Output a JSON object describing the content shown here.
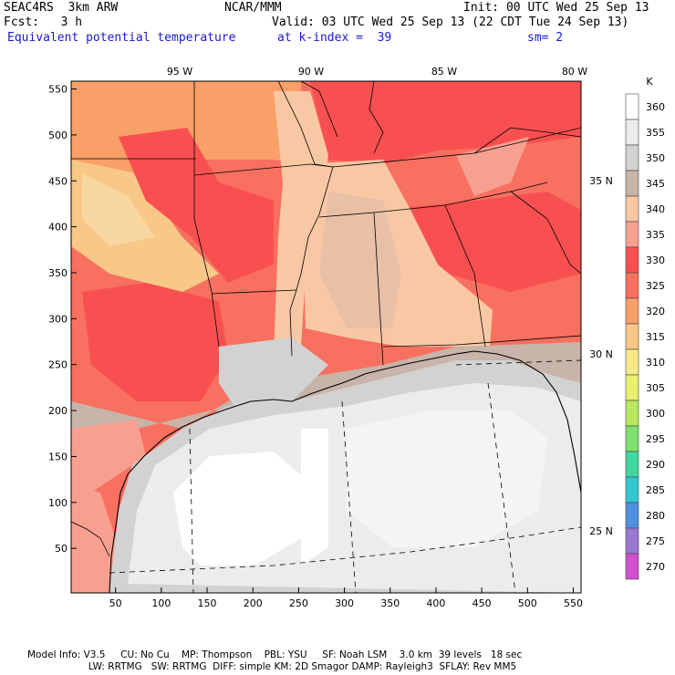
{
  "header": {
    "line1_left": "SEAC4RS  3km ARW",
    "line1_mid": "NCAR/MMM",
    "line1_right": "Init: 00 UTC Wed 25 Sep 13",
    "line2_left": "Fcst:   3 h",
    "line2_right": "Valid: 03 UTC Wed 25 Sep 13 (22 CDT Tue 24 Sep 13)",
    "line3_left": "Equivalent potential temperature",
    "line3_mid": "at k-index =  39",
    "line3_right": "sm= 2"
  },
  "map": {
    "top_lon_labels": [
      "95 W",
      "90 W",
      "85 W",
      "80 W"
    ],
    "right_lat_labels": [
      "35 N",
      "30 N",
      "25 N"
    ],
    "y_tick_labels": [
      "550",
      "500",
      "450",
      "400",
      "350",
      "300",
      "250",
      "200",
      "150",
      "100",
      "50"
    ],
    "x_tick_labels": [
      "50",
      "100",
      "150",
      "200",
      "250",
      "300",
      "350",
      "400",
      "450",
      "500",
      "550"
    ]
  },
  "legend": {
    "unit": "K",
    "levels": [
      "360",
      "355",
      "350",
      "345",
      "340",
      "335",
      "330",
      "325",
      "320",
      "315",
      "310",
      "305",
      "300",
      "295",
      "290",
      "285",
      "280",
      "275",
      "270"
    ],
    "colors": [
      "#ffffff",
      "#ececec",
      "#d2d2d2",
      "#c8b4a8",
      "#f8c8a4",
      "#f8a090",
      "#f85050",
      "#f87060",
      "#f8a068",
      "#f8c888",
      "#f8e888",
      "#e8f070",
      "#b8e860",
      "#80e070",
      "#40d8a0",
      "#30c8d0",
      "#5090e0",
      "#9878d0",
      "#d050d0"
    ]
  },
  "footer": {
    "line1": "Model Info: V3.5     CU: No Cu    MP: Thompson    PBL: YSU     SF: Noah LSM    3.0 km  39 levels   18 sec",
    "line2": "                    LW: RRTMG   SW: RRTMG  DIFF: simple KM: 2D Smagor DAMP: Rayleigh3  SFLAY: Rev MM5"
  }
}
